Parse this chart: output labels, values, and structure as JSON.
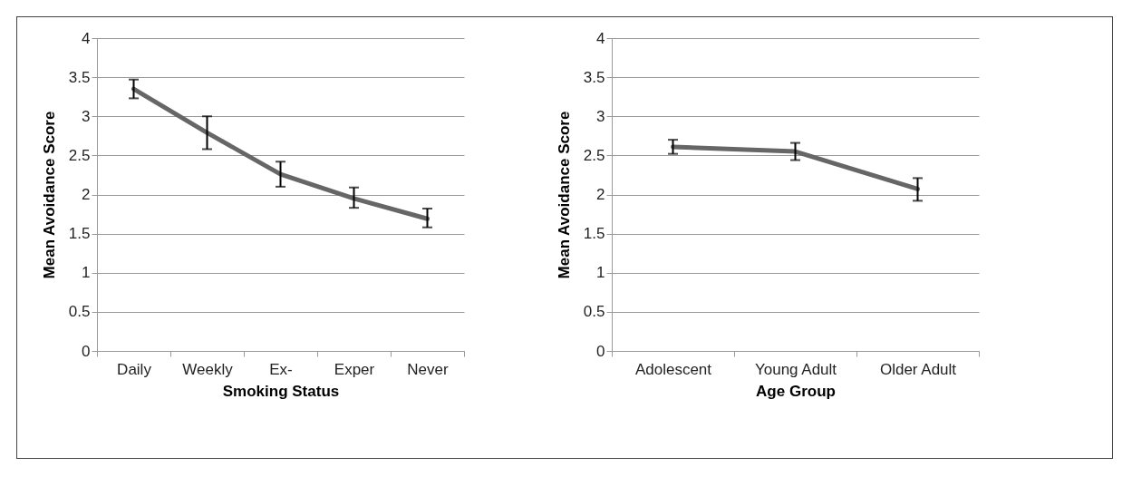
{
  "chart_data": [
    {
      "type": "line",
      "categories": [
        "Daily",
        "Weekly",
        "Ex-",
        "Exper",
        "Never"
      ],
      "xlabel": "Smoking Status",
      "ylabel": "Mean Avoidance Score",
      "ylim": [
        0,
        4
      ],
      "yticks": [
        0,
        0.5,
        1,
        1.5,
        2,
        2.5,
        3,
        3.5,
        4
      ],
      "grid": "y",
      "marker": "none",
      "series": [
        {
          "color": "#666666",
          "values": [
            3.35,
            2.79,
            2.26,
            1.95,
            1.69
          ],
          "errors": [
            [
              3.23,
              3.47
            ],
            [
              2.58,
              3.0
            ],
            [
              2.1,
              2.42
            ],
            [
              1.83,
              2.09
            ],
            [
              1.58,
              1.82
            ]
          ]
        }
      ]
    },
    {
      "type": "line",
      "categories": [
        "Adolescent",
        "Young Adult",
        "Older Adult"
      ],
      "xlabel": "Age Group",
      "ylabel": "Mean Avoidance Score",
      "ylim": [
        0,
        4
      ],
      "yticks": [
        0,
        0.5,
        1,
        1.5,
        2,
        2.5,
        3,
        3.5,
        4
      ],
      "grid": "y",
      "marker": "none",
      "series": [
        {
          "color": "#666666",
          "values": [
            2.61,
            2.55,
            2.07
          ],
          "errors": [
            [
              2.52,
              2.7
            ],
            [
              2.44,
              2.66
            ],
            [
              1.92,
              2.21
            ]
          ]
        }
      ]
    }
  ]
}
